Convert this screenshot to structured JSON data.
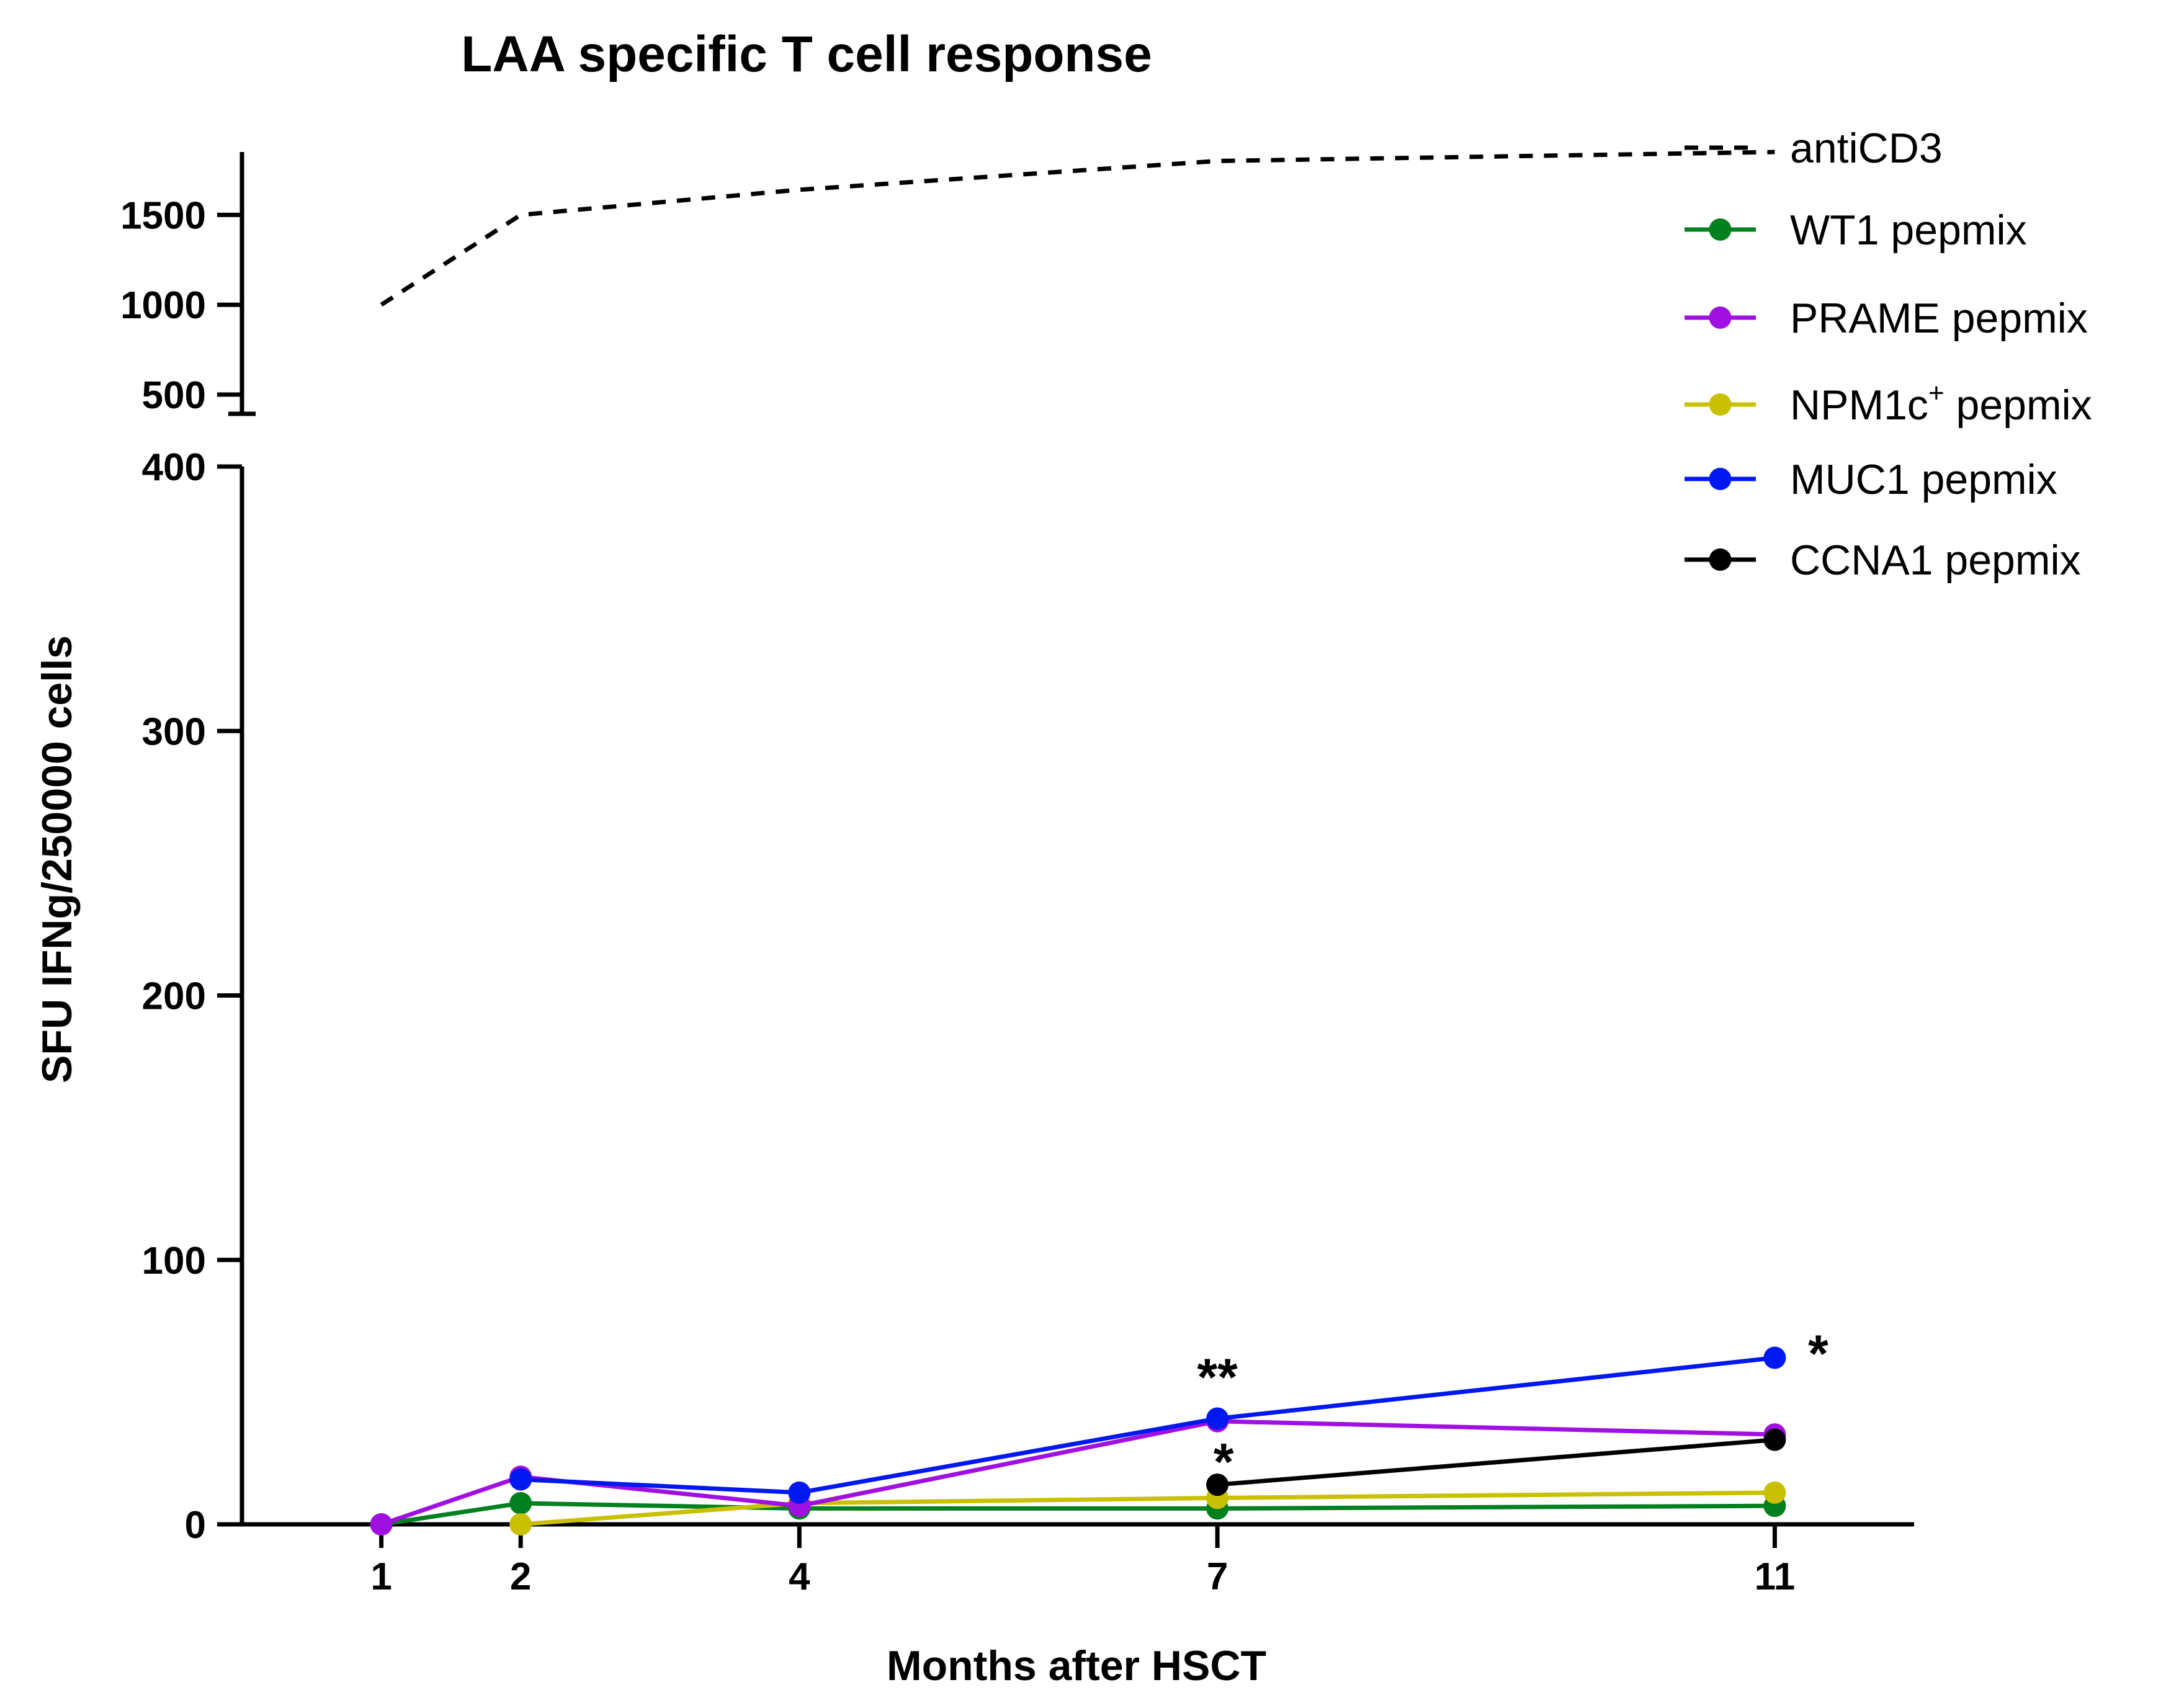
{
  "chart_data": {
    "type": "line",
    "title": "LAA specific T cell response",
    "xlabel": "Months after HSCT",
    "ylabel": "SFU IFNg/250000 cells",
    "x": [
      1,
      2,
      4,
      7,
      11
    ],
    "x_tick_labels": [
      "1",
      "2",
      "4",
      "7",
      "11"
    ],
    "xlim": [
      0,
      12
    ],
    "y_axis_broken": true,
    "lower_segment": {
      "ylim": [
        0,
        400
      ],
      "ticks": [
        0,
        100,
        200,
        300,
        400
      ],
      "tick_labels": [
        "0",
        "100",
        "200",
        "300",
        "400"
      ]
    },
    "upper_segment": {
      "ylim": [
        400,
        1850
      ],
      "ticks": [
        500,
        1000,
        1500
      ],
      "tick_labels": [
        "500",
        "1000",
        "1500"
      ]
    },
    "series": [
      {
        "name": "antiCD3",
        "color": "#000000",
        "style": "dashed",
        "markers": false,
        "x": [
          1,
          2,
          4,
          7,
          11
        ],
        "values": [
          1000,
          1500,
          1640,
          1800,
          1850
        ]
      },
      {
        "name": "WT1 pepmix",
        "color": "#00801e",
        "style": "solid",
        "markers": true,
        "x": [
          1,
          2,
          4,
          7,
          11
        ],
        "values": [
          0,
          8,
          6,
          6,
          7
        ]
      },
      {
        "name": "PRAME pepmix",
        "color": "#a010e0",
        "style": "solid",
        "markers": true,
        "x": [
          1,
          2,
          4,
          7,
          11
        ],
        "values": [
          0,
          18,
          7,
          39,
          34
        ]
      },
      {
        "name": "NPM1c",
        "superscript": "+",
        "name_suffix": " pepmix",
        "color": "#c8c000",
        "style": "solid",
        "markers": true,
        "x": [
          2,
          4,
          7,
          11
        ],
        "values": [
          0,
          8,
          10,
          12
        ]
      },
      {
        "name": "MUC1 pepmix",
        "color": "#0018f0",
        "style": "solid",
        "markers": true,
        "x": [
          2,
          4,
          7,
          11
        ],
        "values": [
          17,
          12,
          40,
          63
        ]
      },
      {
        "name": "CCNA1 pepmix",
        "color": "#000000",
        "style": "solid",
        "markers": true,
        "x": [
          7,
          11
        ],
        "values": [
          15,
          32
        ]
      }
    ],
    "annotations": [
      {
        "text": "**",
        "x": 7,
        "y": 40
      },
      {
        "text": "*",
        "x": 7,
        "y": 15
      },
      {
        "text": "*",
        "x": 11,
        "y": 63
      }
    ],
    "legend_position": "top-right"
  }
}
